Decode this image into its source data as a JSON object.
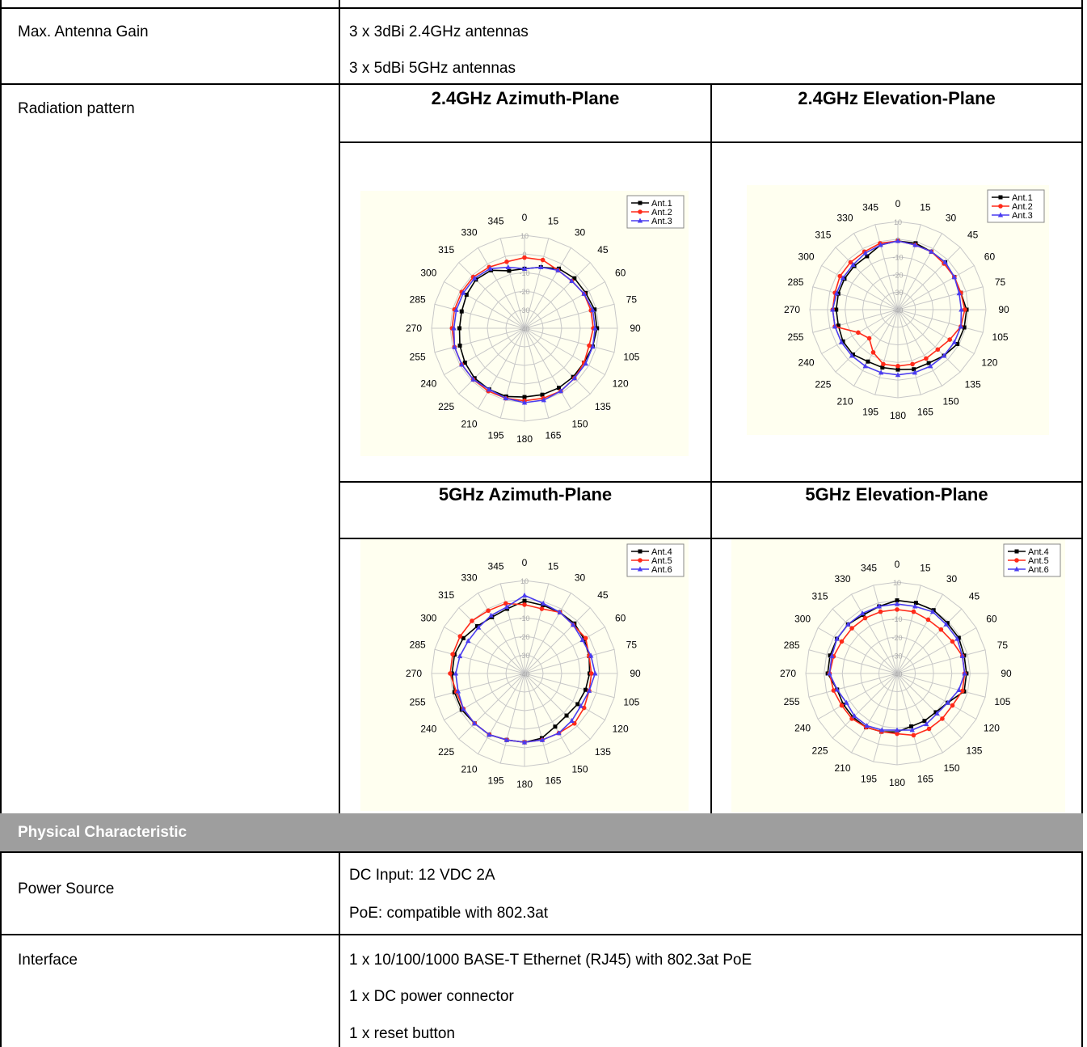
{
  "rows": {
    "antenna_gain": {
      "label": "Max. Antenna Gain",
      "values": [
        "3 x 3dBi 2.4GHz antennas",
        "3 x 5dBi 5GHz antennas"
      ]
    },
    "radiation": {
      "label": "Radiation pattern",
      "titles": [
        "2.4GHz Azimuth-Plane",
        "2.4GHz Elevation-Plane",
        "5GHz Azimuth-Plane",
        "5GHz Elevation-Plane"
      ]
    },
    "section": "Physical Characteristic",
    "power": {
      "label": "Power Source",
      "values": [
        "DC Input: 12 VDC  2A",
        "PoE: compatible with 802.3at"
      ]
    },
    "interface": {
      "label": "Interface",
      "values": [
        "1 x 10/100/1000 BASE-T Ethernet (RJ45) with 802.3at PoE",
        "1 x DC power connector",
        "1 x reset button"
      ]
    }
  },
  "colors": {
    "chart_bg": "#fffff0",
    "series": [
      "#000000",
      "#ff2a1a",
      "#4a3cf0"
    ],
    "grid": "#c8c8c8",
    "section_bar": "#9e9e9e"
  },
  "chart_data": [
    {
      "type": "radar",
      "title": "2.4GHz Azimuth-Plane",
      "angles": [
        0,
        15,
        30,
        45,
        60,
        75,
        90,
        105,
        120,
        135,
        150,
        165,
        180,
        195,
        210,
        225,
        240,
        255,
        270,
        285,
        300,
        315,
        330,
        345
      ],
      "radial_ticks": [
        "10",
        "0",
        "-10",
        "-20",
        "-30",
        "-40"
      ],
      "rlim": [
        -40,
        10
      ],
      "legend_position": "top-right",
      "series": [
        {
          "name": "Ant.1",
          "marker": "square",
          "values": [
            -8,
            -6,
            -3,
            -2,
            -2,
            -1,
            -1,
            -2,
            -3,
            -3,
            -3,
            -3,
            -3,
            -2,
            -2,
            -2,
            -3,
            -4,
            -5,
            -5,
            -4,
            -3,
            -4,
            -8
          ]
        },
        {
          "name": "Ant.2",
          "marker": "circle",
          "values": [
            -2,
            -2,
            -4,
            -4,
            -3,
            -3,
            -3,
            -4,
            -3,
            -2,
            -1,
            -1,
            -1,
            -1,
            -1,
            -1,
            -1,
            -1,
            -1,
            -1,
            -1,
            -1,
            -2,
            -3
          ]
        },
        {
          "name": "Ant.3",
          "marker": "triangle",
          "values": [
            -8,
            -6,
            -4,
            -4,
            -3,
            -2,
            -2,
            -2,
            -2,
            -2,
            -1,
            0,
            0,
            -1,
            -2,
            -1,
            -1,
            -1,
            -2,
            -2,
            -2,
            -2,
            -3,
            -6
          ]
        }
      ]
    },
    {
      "type": "radar",
      "title": "2.4GHz Elevation-Plane",
      "angles": [
        0,
        15,
        30,
        45,
        60,
        75,
        90,
        105,
        120,
        135,
        150,
        165,
        180,
        195,
        210,
        225,
        240,
        255,
        270,
        285,
        300,
        315,
        330,
        345
      ],
      "radial_ticks": [
        "10",
        "0",
        "-10",
        "-20",
        "-30",
        "-40"
      ],
      "rlim": [
        -40,
        10
      ],
      "legend_position": "top-right",
      "series": [
        {
          "name": "Ant.1",
          "marker": "square",
          "values": [
            -1,
            -1,
            -2,
            -2,
            -3,
            -3,
            -1,
            -1,
            -1,
            -3,
            -5,
            -5,
            -6,
            -6,
            -6,
            -4,
            -4,
            -5,
            -5,
            -5,
            -5,
            -5,
            -5,
            -2
          ]
        },
        {
          "name": "Ant.2",
          "marker": "circle",
          "values": [
            -1,
            -2,
            -2,
            -3,
            -3,
            -3,
            -2,
            -3,
            -6,
            -8,
            -8,
            -8,
            -8,
            -8,
            -12,
            -17,
            -14,
            -3,
            -3,
            -3,
            -2,
            -2,
            -2,
            -1
          ]
        },
        {
          "name": "Ant.3",
          "marker": "triangle",
          "values": [
            -1,
            -2,
            -2,
            -2,
            -3,
            -4,
            -4,
            -3,
            -3,
            -3,
            -3,
            -3,
            -3,
            -3,
            -3,
            -3,
            -3,
            -3,
            -3,
            -4,
            -4,
            -4,
            -3,
            -2
          ]
        }
      ]
    },
    {
      "type": "radar",
      "title": "5GHz Azimuth-Plane",
      "angles": [
        0,
        15,
        30,
        45,
        60,
        75,
        90,
        105,
        120,
        135,
        150,
        165,
        180,
        195,
        210,
        225,
        240,
        255,
        270,
        285,
        300,
        315,
        330,
        345
      ],
      "radial_ticks": [
        "10",
        "0",
        "-10",
        "-20",
        "-30",
        "-40"
      ],
      "rlim": [
        -40,
        10
      ],
      "legend_position": "top-right",
      "series": [
        {
          "name": "Ant.4",
          "marker": "square",
          "values": [
            -1,
            -2,
            -2,
            -2,
            -3,
            -4,
            -5,
            -6,
            -7,
            -8,
            -7,
            -4,
            -3,
            -3,
            -2,
            -2,
            -1,
            -1,
            -1,
            -1,
            -2,
            -4,
            -5,
            -4
          ]
        },
        {
          "name": "Ant.5",
          "marker": "circle",
          "values": [
            -3,
            -4,
            -2,
            -3,
            -2,
            -4,
            -4,
            -4,
            -3,
            -2,
            -3,
            -3,
            -3,
            -3,
            -2,
            -2,
            -2,
            -2,
            0,
            0,
            0,
            0,
            -1,
            -1
          ]
        },
        {
          "name": "Ant.6",
          "marker": "triangle",
          "values": [
            2,
            -1,
            -2,
            -3,
            -4,
            -3,
            -2,
            -4,
            -5,
            -4,
            -3,
            -3,
            -3,
            -3,
            -2,
            -2,
            -2,
            -3,
            -3,
            -4,
            -5,
            -5,
            -4,
            -3
          ]
        }
      ]
    },
    {
      "type": "radar",
      "title": "5GHz Elevation-Plane",
      "angles": [
        0,
        15,
        30,
        45,
        60,
        75,
        90,
        105,
        120,
        135,
        150,
        165,
        180,
        195,
        210,
        225,
        240,
        255,
        270,
        285,
        300,
        315,
        330,
        345
      ],
      "radial_ticks": [
        "10",
        "0",
        "-10",
        "-20",
        "-30",
        "-40"
      ],
      "rlim": [
        -40,
        10
      ],
      "legend_position": "top-right",
      "series": [
        {
          "name": "Ant.4",
          "marker": "square",
          "values": [
            0,
            0,
            0,
            -1,
            -1,
            -2,
            -2,
            -2,
            -8,
            -10,
            -10,
            -10,
            -8,
            -7,
            -6,
            -6,
            -6,
            -6,
            -2,
            -2,
            -2,
            -2,
            -3,
            -2
          ]
        },
        {
          "name": "Ant.5",
          "marker": "circle",
          "values": [
            -5,
            -5,
            -6,
            -6,
            -5,
            -3,
            -3,
            -3,
            -5,
            -5,
            -5,
            -5,
            -7,
            -7,
            -6,
            -5,
            -5,
            -4,
            -3,
            -4,
            -5,
            -5,
            -5,
            -5
          ]
        },
        {
          "name": "Ant.6",
          "marker": "triangle",
          "values": [
            -2,
            -2,
            -1,
            -2,
            -2,
            -3,
            -3,
            -5,
            -8,
            -9,
            -8,
            -8,
            -9,
            -8,
            -7,
            -7,
            -8,
            -6,
            -3,
            -3,
            -2,
            -2,
            -2,
            -2
          ]
        }
      ]
    }
  ]
}
